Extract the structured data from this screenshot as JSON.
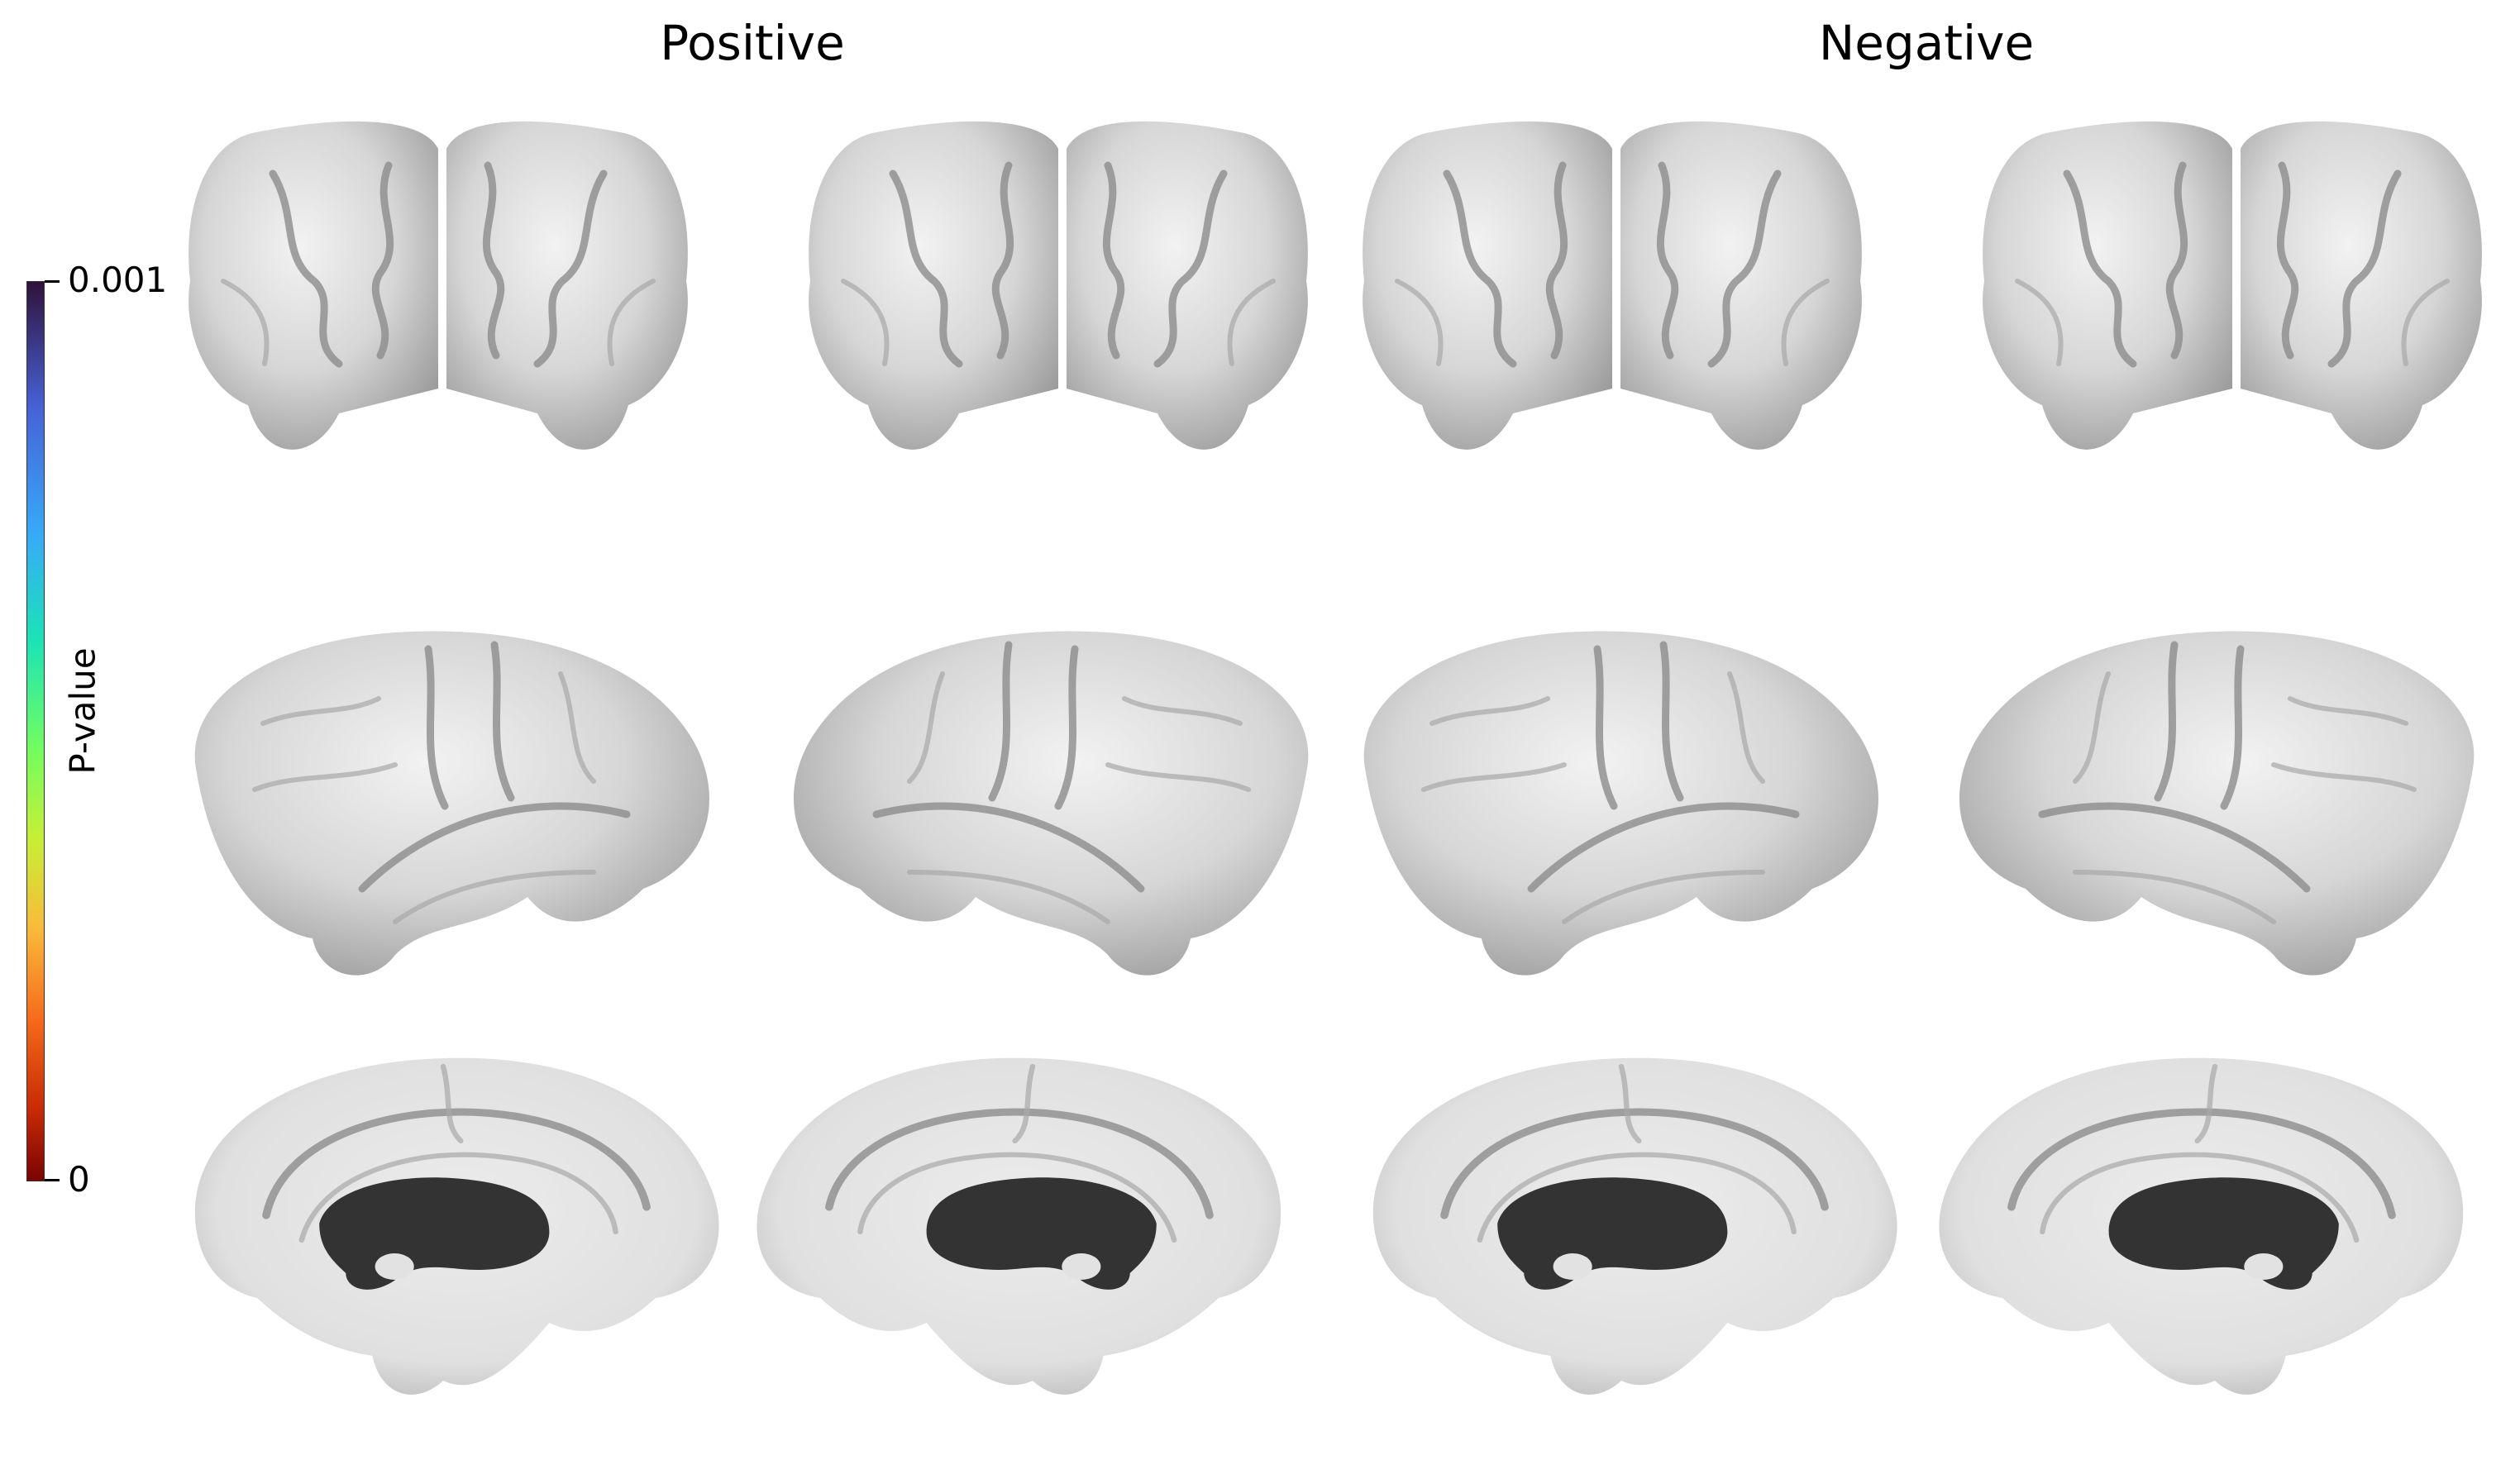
{
  "titles": {
    "left": "Positive",
    "right": "Negative"
  },
  "colorbar": {
    "label": "P-value",
    "max_label": "0.001",
    "min_label": "0",
    "colormap": "turbo (reversed: 0 = dark red, 0.001 = dark purple)",
    "colors": [
      "#30123b",
      "#4662d7",
      "#36aaf9",
      "#1ae4b6",
      "#72fe5e",
      "#c7ef34",
      "#faba39",
      "#f66b19",
      "#ca2a04",
      "#7a0403"
    ]
  },
  "panels": {
    "columns": [
      "left-hemisphere",
      "right-hemisphere",
      "left-hemisphere",
      "right-hemisphere"
    ],
    "rows": [
      "posterior-view",
      "lateral-view",
      "medial-view"
    ],
    "surface_color": "#d9d9d9",
    "medial_wall_color": "#333333"
  }
}
